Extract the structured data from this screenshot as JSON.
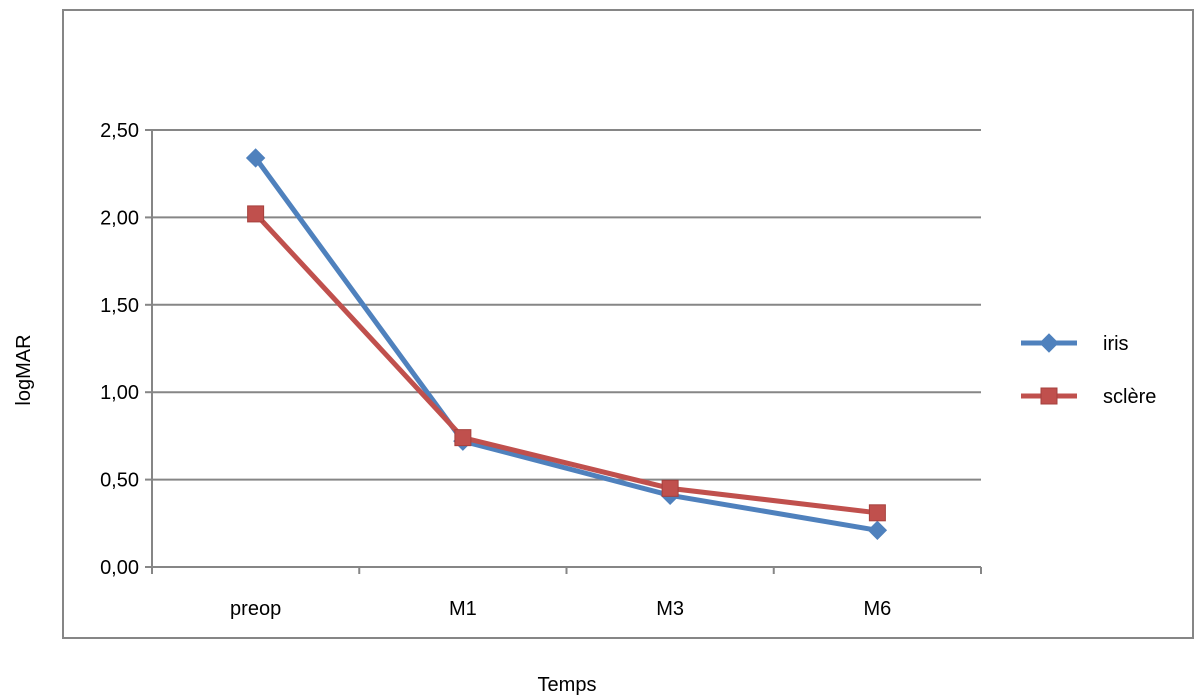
{
  "chart_data": {
    "type": "line",
    "title": "",
    "xlabel": "Temps",
    "ylabel": "logMAR",
    "categories": [
      "preop",
      "M1",
      "M3",
      "M6"
    ],
    "ylim": [
      0,
      2.5
    ],
    "yticks": [
      "0,00",
      "0,50",
      "1,00",
      "1,50",
      "2,00",
      "2,50"
    ],
    "grid": true,
    "legend_position": "right",
    "series": [
      {
        "name": "iris",
        "color": "#4f81bd",
        "marker": "diamond",
        "values": [
          2.34,
          0.72,
          0.41,
          0.21
        ]
      },
      {
        "name": "sclère",
        "color": "#c0504d",
        "marker": "square",
        "values": [
          2.02,
          0.74,
          0.45,
          0.31
        ]
      }
    ]
  }
}
